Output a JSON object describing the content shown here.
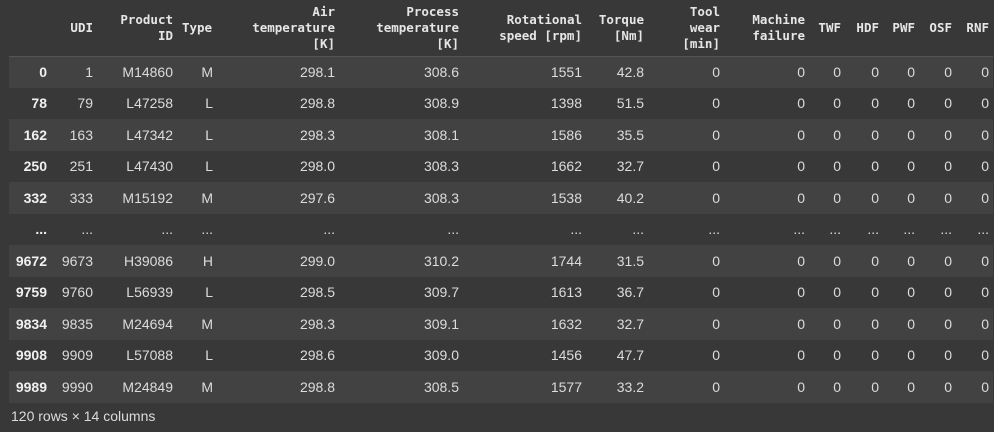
{
  "table": {
    "columns": [
      {
        "key": "index",
        "lines": [
          ""
        ]
      },
      {
        "key": "udi",
        "lines": [
          "UDI"
        ]
      },
      {
        "key": "product_id",
        "lines": [
          "Product",
          "ID"
        ]
      },
      {
        "key": "type",
        "lines": [
          "Type"
        ]
      },
      {
        "key": "air_temp",
        "lines": [
          "Air",
          "temperature",
          "[K]"
        ]
      },
      {
        "key": "process_temp",
        "lines": [
          "Process",
          "temperature",
          "[K]"
        ]
      },
      {
        "key": "rot_speed",
        "lines": [
          "Rotational",
          "speed [rpm]"
        ]
      },
      {
        "key": "torque",
        "lines": [
          "Torque",
          "[Nm]"
        ]
      },
      {
        "key": "tool_wear",
        "lines": [
          "Tool",
          "wear",
          "[min]"
        ]
      },
      {
        "key": "machine_failure",
        "lines": [
          "Machine",
          "failure"
        ]
      },
      {
        "key": "twf",
        "lines": [
          "TWF"
        ]
      },
      {
        "key": "hdf",
        "lines": [
          "HDF"
        ]
      },
      {
        "key": "pwf",
        "lines": [
          "PWF"
        ]
      },
      {
        "key": "osf",
        "lines": [
          "OSF"
        ]
      },
      {
        "key": "rnf",
        "lines": [
          "RNF"
        ]
      }
    ],
    "rows": [
      [
        "0",
        "1",
        "M14860",
        "M",
        "298.1",
        "308.6",
        "1551",
        "42.8",
        "0",
        "0",
        "0",
        "0",
        "0",
        "0",
        "0"
      ],
      [
        "78",
        "79",
        "L47258",
        "L",
        "298.8",
        "308.9",
        "1398",
        "51.5",
        "0",
        "0",
        "0",
        "0",
        "0",
        "0",
        "0"
      ],
      [
        "162",
        "163",
        "L47342",
        "L",
        "298.3",
        "308.1",
        "1586",
        "35.5",
        "0",
        "0",
        "0",
        "0",
        "0",
        "0",
        "0"
      ],
      [
        "250",
        "251",
        "L47430",
        "L",
        "298.0",
        "308.3",
        "1662",
        "32.7",
        "0",
        "0",
        "0",
        "0",
        "0",
        "0",
        "0"
      ],
      [
        "332",
        "333",
        "M15192",
        "M",
        "297.6",
        "308.3",
        "1538",
        "40.2",
        "0",
        "0",
        "0",
        "0",
        "0",
        "0",
        "0"
      ],
      [
        "...",
        "...",
        "...",
        "...",
        "...",
        "...",
        "...",
        "...",
        "...",
        "...",
        "...",
        "...",
        "...",
        "...",
        "..."
      ],
      [
        "9672",
        "9673",
        "H39086",
        "H",
        "299.0",
        "310.2",
        "1744",
        "31.5",
        "0",
        "0",
        "0",
        "0",
        "0",
        "0",
        "0"
      ],
      [
        "9759",
        "9760",
        "L56939",
        "L",
        "298.5",
        "309.7",
        "1613",
        "36.7",
        "0",
        "0",
        "0",
        "0",
        "0",
        "0",
        "0"
      ],
      [
        "9834",
        "9835",
        "M24694",
        "M",
        "298.3",
        "309.1",
        "1632",
        "32.7",
        "0",
        "0",
        "0",
        "0",
        "0",
        "0",
        "0"
      ],
      [
        "9908",
        "9909",
        "L57088",
        "L",
        "298.6",
        "309.0",
        "1456",
        "47.7",
        "0",
        "0",
        "0",
        "0",
        "0",
        "0",
        "0"
      ],
      [
        "9989",
        "9990",
        "M24849",
        "M",
        "298.8",
        "308.5",
        "1577",
        "33.2",
        "0",
        "0",
        "0",
        "0",
        "0",
        "0",
        "0"
      ]
    ]
  },
  "footer": {
    "shape_text": "120 rows × 14 columns"
  }
}
